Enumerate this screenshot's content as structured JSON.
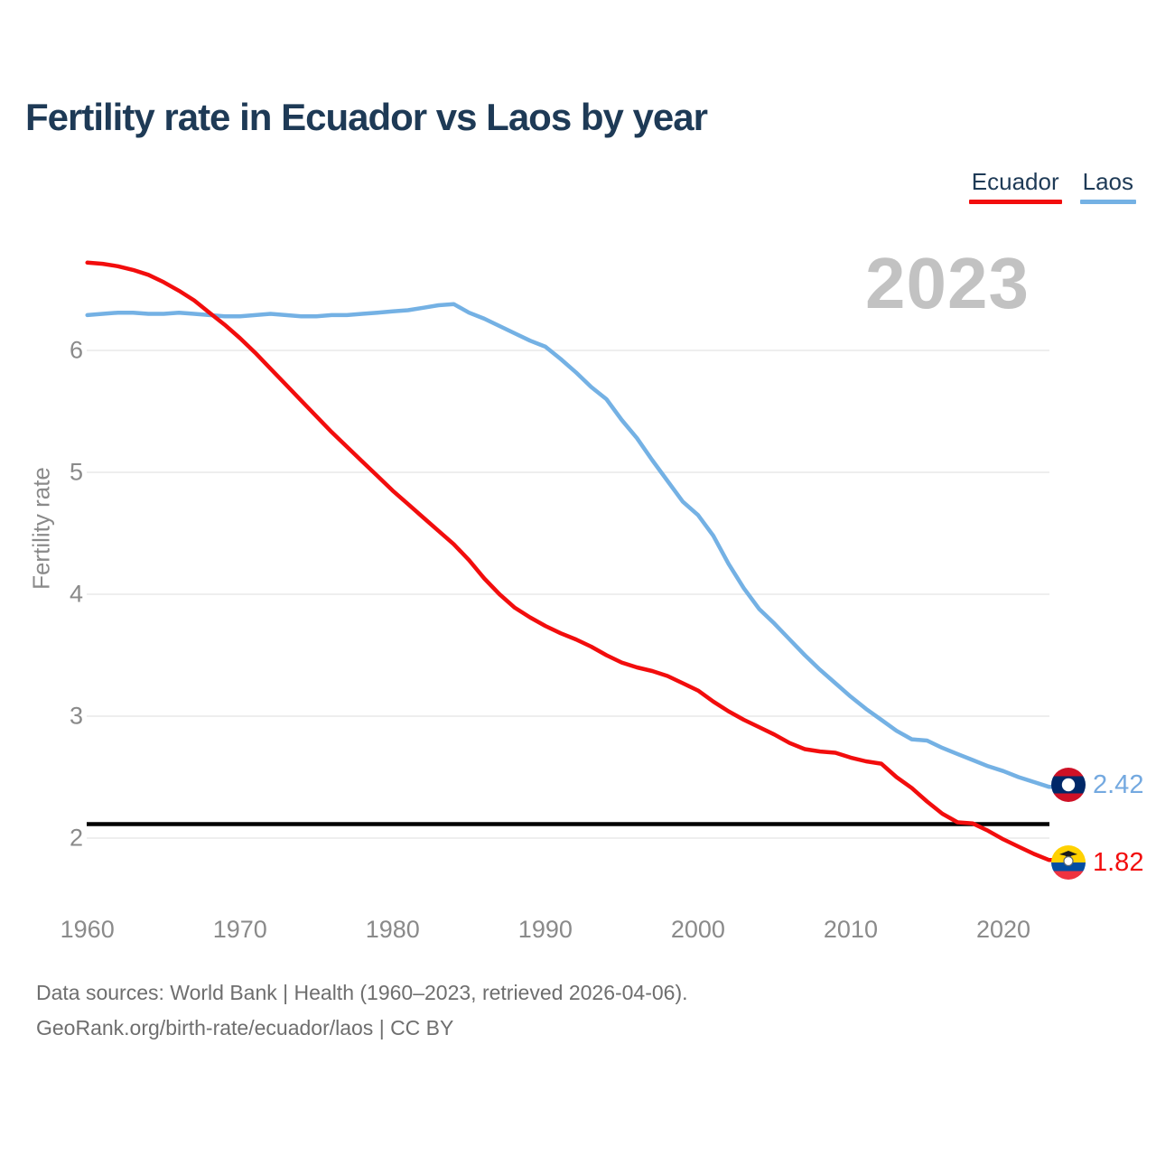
{
  "title": "Fertility rate in Ecuador vs Laos by year",
  "watermark": "2023",
  "legend": [
    {
      "label": "Ecuador",
      "color": "#f20d0d"
    },
    {
      "label": "Laos",
      "color": "#74b1e4"
    }
  ],
  "y_axis_title": "Fertility rate",
  "end_labels": {
    "laos": {
      "value": "2.42",
      "color": "#74a9e0",
      "icon": "laos-flag-icon"
    },
    "ecuador": {
      "value": "1.82",
      "color": "#f20d0d",
      "icon": "ecuador-flag-icon"
    }
  },
  "footer": {
    "line1": "Data sources: World Bank | Health (1960–2023, retrieved 2026-04-06).",
    "line2": "GeoRank.org/birth-rate/ecuador/laos | CC BY"
  },
  "chart_data": {
    "type": "line",
    "title": "Fertility rate in Ecuador vs Laos by year",
    "xlabel": "",
    "ylabel": "Fertility rate",
    "grid": true,
    "legend_position": "top-right",
    "x_axis": {
      "min": 1960,
      "max": 2023,
      "ticks": [
        1960,
        1970,
        1980,
        1990,
        2000,
        2010,
        2020
      ]
    },
    "y_axis": {
      "min": 2,
      "max": 6,
      "ticks": [
        2,
        3,
        4,
        5,
        6
      ]
    },
    "replacement_line": {
      "value": 2.1,
      "color": "#000000"
    },
    "x": [
      1960,
      1961,
      1962,
      1963,
      1964,
      1965,
      1966,
      1967,
      1968,
      1969,
      1970,
      1971,
      1972,
      1973,
      1974,
      1975,
      1976,
      1977,
      1978,
      1979,
      1980,
      1981,
      1982,
      1983,
      1984,
      1985,
      1986,
      1987,
      1988,
      1989,
      1990,
      1991,
      1992,
      1993,
      1994,
      1995,
      1996,
      1997,
      1998,
      1999,
      2000,
      2001,
      2002,
      2003,
      2004,
      2005,
      2006,
      2007,
      2008,
      2009,
      2010,
      2011,
      2012,
      2013,
      2014,
      2015,
      2016,
      2017,
      2018,
      2019,
      2020,
      2021,
      2022,
      2023
    ],
    "series": [
      {
        "name": "Laos",
        "color": "#74b1e4",
        "final_value": 2.42,
        "values": [
          6.29,
          6.3,
          6.31,
          6.31,
          6.3,
          6.3,
          6.31,
          6.3,
          6.29,
          6.28,
          6.28,
          6.29,
          6.3,
          6.29,
          6.28,
          6.28,
          6.29,
          6.29,
          6.3,
          6.31,
          6.32,
          6.33,
          6.35,
          6.37,
          6.38,
          6.31,
          6.26,
          6.2,
          6.14,
          6.08,
          6.03,
          5.93,
          5.82,
          5.7,
          5.6,
          5.43,
          5.28,
          5.1,
          4.93,
          4.76,
          4.65,
          4.48,
          4.25,
          4.05,
          3.88,
          3.76,
          3.63,
          3.5,
          3.38,
          3.27,
          3.16,
          3.06,
          2.97,
          2.88,
          2.81,
          2.8,
          2.74,
          2.69,
          2.64,
          2.59,
          2.55,
          2.5,
          2.46,
          2.42
        ]
      },
      {
        "name": "Ecuador",
        "color": "#f20d0d",
        "final_value": 1.82,
        "values": [
          6.72,
          6.71,
          6.69,
          6.66,
          6.62,
          6.56,
          6.49,
          6.41,
          6.31,
          6.21,
          6.1,
          5.98,
          5.85,
          5.72,
          5.59,
          5.46,
          5.33,
          5.21,
          5.09,
          4.97,
          4.85,
          4.74,
          4.63,
          4.52,
          4.41,
          4.28,
          4.13,
          4.0,
          3.89,
          3.81,
          3.74,
          3.68,
          3.63,
          3.57,
          3.5,
          3.44,
          3.4,
          3.37,
          3.33,
          3.27,
          3.21,
          3.12,
          3.04,
          2.97,
          2.91,
          2.85,
          2.78,
          2.73,
          2.71,
          2.7,
          2.66,
          2.63,
          2.61,
          2.5,
          2.41,
          2.3,
          2.2,
          2.13,
          2.12,
          2.06,
          1.99,
          1.93,
          1.87,
          1.82
        ]
      }
    ]
  }
}
